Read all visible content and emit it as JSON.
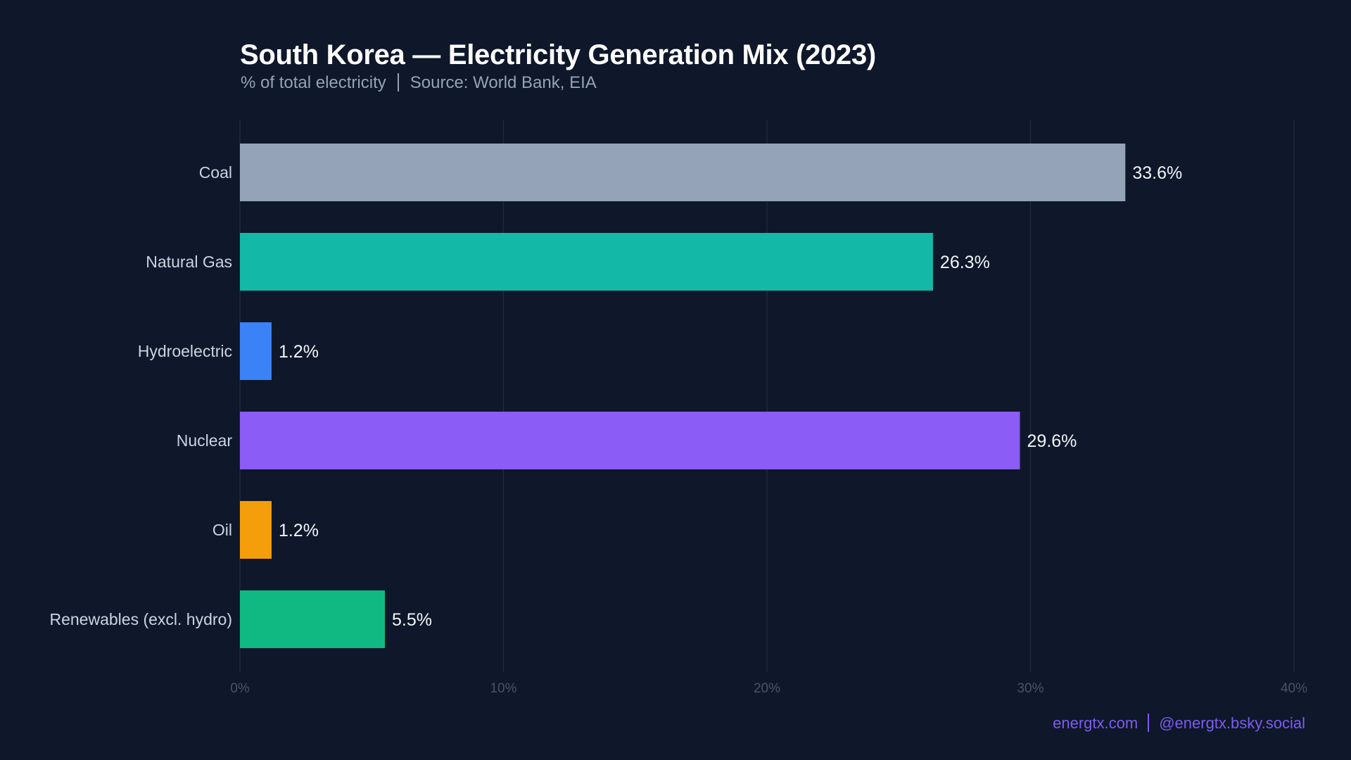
{
  "chart_data": {
    "type": "bar",
    "orientation": "horizontal",
    "title": "South Korea — Electricity Generation Mix (2023)",
    "subtitle_unit": "% of total electricity",
    "subtitle_source": "Source: World Bank, EIA",
    "categories": [
      "Coal",
      "Natural Gas",
      "Hydroelectric",
      "Nuclear",
      "Oil",
      "Renewables (excl. hydro)"
    ],
    "values": [
      33.6,
      26.3,
      1.2,
      29.6,
      1.2,
      5.5
    ],
    "data_labels": [
      "33.6%",
      "26.3%",
      "1.2%",
      "29.6%",
      "1.2%",
      "5.5%"
    ],
    "colors": [
      "#94a3b8",
      "#14b8a6",
      "#3b82f6",
      "#8b5cf6",
      "#f59e0b",
      "#10b981"
    ],
    "xlim": [
      0,
      40
    ],
    "xticks": [
      0,
      10,
      20,
      30,
      40
    ],
    "xtick_labels": [
      "0%",
      "10%",
      "20%",
      "30%",
      "40%"
    ],
    "grid": true,
    "legend": "none"
  },
  "footer": {
    "website": "energtx.com",
    "social": "@energtx.bsky.social"
  }
}
